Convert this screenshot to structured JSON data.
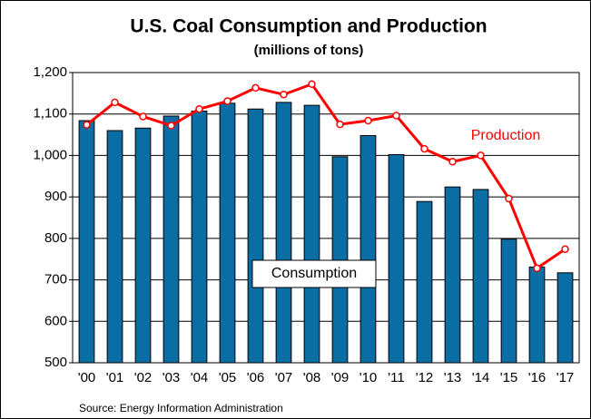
{
  "chart_data": {
    "type": "bar-line",
    "title": "U.S. Coal Consumption and Production",
    "subtitle": "(millions of tons)",
    "source": "Source:  Energy Information Administration",
    "categories": [
      "'00",
      "'01",
      "'02",
      "'03",
      "'04",
      "'05",
      "'06",
      "'07",
      "'08",
      "'09",
      "'10",
      "'11",
      "'12",
      "'13",
      "'14",
      "'15",
      "'16",
      "'17"
    ],
    "series": [
      {
        "name": "Consumption",
        "type": "bar",
        "color": "#0a6ea5",
        "values": [
          1084,
          1060,
          1066,
          1095,
          1107,
          1126,
          1112,
          1128,
          1121,
          997,
          1048,
          1002,
          889,
          924,
          918,
          798,
          731,
          717
        ]
      },
      {
        "name": "Production",
        "type": "line",
        "color": "#ff0000",
        "values": [
          1074,
          1128,
          1094,
          1072,
          1112,
          1131,
          1163,
          1147,
          1172,
          1075,
          1084,
          1096,
          1016,
          985,
          1000,
          896,
          728,
          774
        ]
      }
    ],
    "ylim": [
      500,
      1200
    ],
    "yticks": [
      500,
      600,
      700,
      800,
      900,
      {
        "value": 1000,
        "label": "1,000"
      },
      {
        "value": 1100,
        "label": "1,100"
      },
      {
        "value": 1200,
        "label": "1,200"
      }
    ],
    "grid": true
  }
}
